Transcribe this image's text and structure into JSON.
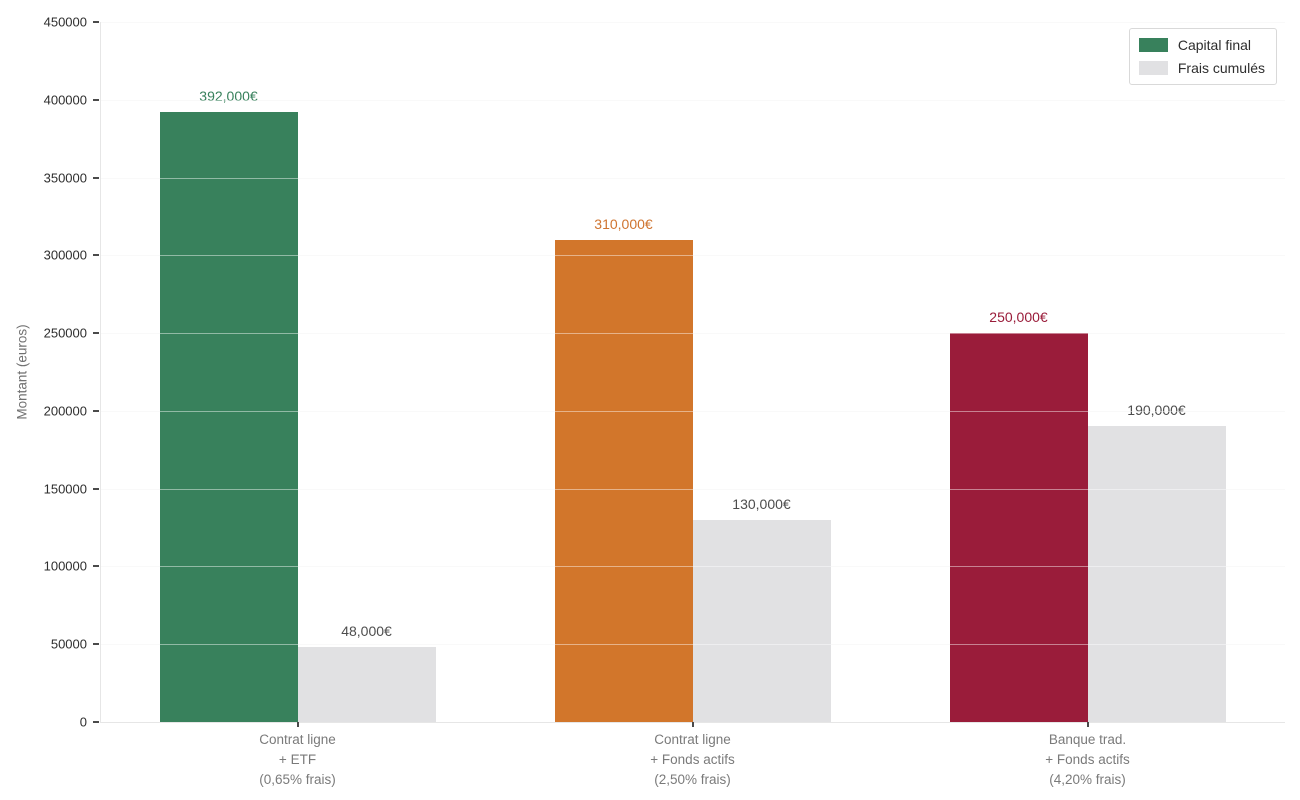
{
  "chart_data": {
    "type": "bar",
    "title": "",
    "xlabel": "",
    "ylabel": "Montant (euros)",
    "ylim": [
      0,
      450000
    ],
    "yticks": [
      0,
      50000,
      100000,
      150000,
      200000,
      250000,
      300000,
      350000,
      400000,
      450000
    ],
    "grid": true,
    "legend_position": "top-right",
    "categories": [
      {
        "lines": [
          "Contrat ligne",
          "+ ETF",
          "(0,65% frais)"
        ]
      },
      {
        "lines": [
          "Contrat ligne",
          "+ Fonds actifs",
          "(2,50% frais)"
        ]
      },
      {
        "lines": [
          "Banque trad.",
          "+ Fonds actifs",
          "(4,20% frais)"
        ]
      }
    ],
    "series": [
      {
        "name": "Capital final",
        "values": [
          392000,
          310000,
          250000
        ],
        "value_labels": [
          "392,000€",
          "310,000€",
          "250,000€"
        ],
        "bar_colors": [
          "#38815c",
          "#d2762b",
          "#9a1c3a"
        ],
        "label_colors": [
          "#38815c",
          "#cf7430",
          "#9a1c3a"
        ],
        "legend_color": "#38815c"
      },
      {
        "name": "Frais cumulés",
        "values": [
          48000,
          130000,
          190000
        ],
        "value_labels": [
          "48,000€",
          "130,000€",
          "190,000€"
        ],
        "bar_colors": [
          "#e1e1e3",
          "#e1e1e3",
          "#e1e1e3"
        ],
        "label_colors": [
          "#4d4d4d",
          "#4d4d4d",
          "#4d4d4d"
        ],
        "legend_color": "#e1e1e3"
      }
    ],
    "legend": [
      {
        "label": "Capital final"
      },
      {
        "label": "Frais cumulés"
      }
    ]
  },
  "colors": {
    "background": "#ffffff",
    "grid_under": "#f4f4f4",
    "grid_over_bars": "rgba(255,255,255,0.45)",
    "spine": "#e6e6e6",
    "tick_mark": "#4a4a4a",
    "ytick_label": "#2e2e2e",
    "xcat_label": "#7a7a7a",
    "ylabel_text": "#707070",
    "legend_border": "#d9d9d9",
    "legend_text": "#2e2e2e"
  }
}
